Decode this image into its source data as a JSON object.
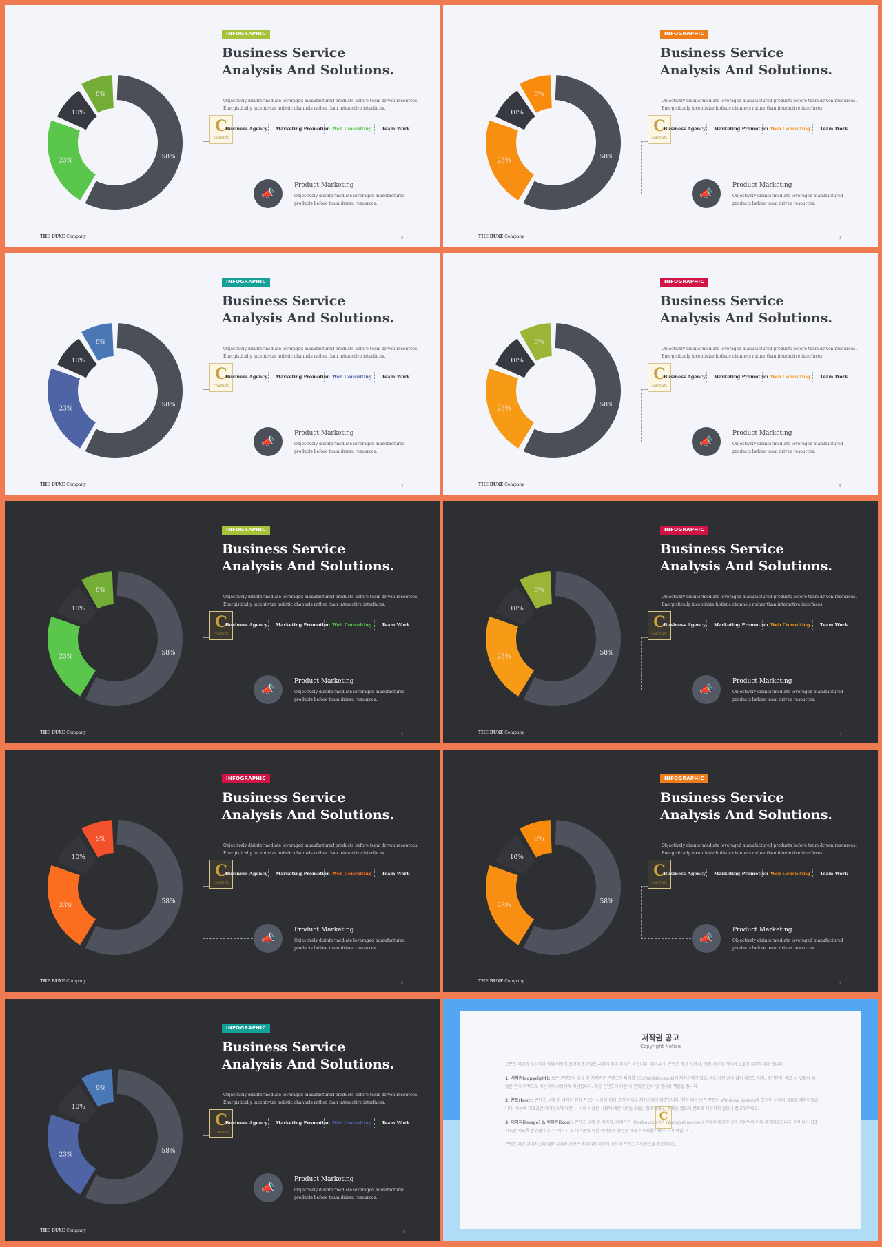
{
  "slide": {
    "tag": "INFOGRAPHIC",
    "title_line1": "Business Service",
    "title_line2": "Analysis And Solutions.",
    "desc_line1": "Objectively disintermediate leveraged manufactured products before team driven resources.",
    "desc_line2": "Energistically incentivize holistic channels rather than interactive interfaces.",
    "tabs": [
      "Business Agency",
      "Marketing Promotion",
      "Web Consulting",
      "Team Work"
    ],
    "pm_title": "Product Marketing",
    "pm_desc_line1": "Objectively disintermediate leveraged manufactured",
    "pm_desc_line2": "products before team driven resources.",
    "footer_brand": "THE BUXE",
    "footer_company": "Company",
    "logo_letter": "C",
    "logo_caption": "CONTENTS"
  },
  "chart_data": [
    {
      "type": "pie",
      "donut": true,
      "slide": 1,
      "theme": "light",
      "accent": "#a6c23a",
      "labels": [
        "58%",
        "23%",
        "10%",
        "9%"
      ],
      "values": [
        58,
        23,
        10,
        9
      ],
      "colors": [
        "#4b4f58",
        "#5ac64b",
        "#363940",
        "#74ad36"
      ],
      "page": "2"
    },
    {
      "type": "pie",
      "donut": true,
      "slide": 2,
      "theme": "light",
      "accent": "#f07c1a",
      "labels": [
        "58%",
        "23%",
        "10%",
        "9%"
      ],
      "values": [
        58,
        23,
        10,
        9
      ],
      "colors": [
        "#4b4f58",
        "#f88e12",
        "#363940",
        "#f98b0c"
      ],
      "page": "3"
    },
    {
      "type": "pie",
      "donut": true,
      "slide": 3,
      "theme": "light",
      "accent": "#13a19a",
      "labels": [
        "58%",
        "23%",
        "10%",
        "9%"
      ],
      "values": [
        58,
        23,
        10,
        9
      ],
      "colors": [
        "#4b4f58",
        "#4f64a4",
        "#363940",
        "#4a77b5"
      ],
      "page": "4"
    },
    {
      "type": "pie",
      "donut": true,
      "slide": 4,
      "theme": "light",
      "accent": "#d21346",
      "labels": [
        "58%",
        "23%",
        "10%",
        "9%"
      ],
      "values": [
        58,
        23,
        10,
        9
      ],
      "colors": [
        "#4b4f58",
        "#f79a16",
        "#363940",
        "#9bb536"
      ],
      "page": "5"
    },
    {
      "type": "pie",
      "donut": true,
      "slide": 5,
      "theme": "dark",
      "accent": "#a6c23a",
      "labels": [
        "58%",
        "23%",
        "10%",
        "9%"
      ],
      "values": [
        58,
        23,
        10,
        9
      ],
      "colors": [
        "#4d525c",
        "#5ac64b",
        "#34363c",
        "#74ad36"
      ],
      "page": "6"
    },
    {
      "type": "pie",
      "donut": true,
      "slide": 6,
      "theme": "dark",
      "accent": "#d21346",
      "labels": [
        "58%",
        "23%",
        "10%",
        "9%"
      ],
      "values": [
        58,
        23,
        10,
        9
      ],
      "colors": [
        "#4d525c",
        "#f79a16",
        "#34363c",
        "#9bb536"
      ],
      "page": "7"
    },
    {
      "type": "pie",
      "donut": true,
      "slide": 7,
      "theme": "dark",
      "accent": "#d21346",
      "labels": [
        "58%",
        "23%",
        "10%",
        "9%"
      ],
      "values": [
        58,
        23,
        10,
        9
      ],
      "colors": [
        "#4d525c",
        "#fb6e20",
        "#34363c",
        "#f2512b"
      ],
      "page": "8"
    },
    {
      "type": "pie",
      "donut": true,
      "slide": 8,
      "theme": "dark",
      "accent": "#f07c1a",
      "labels": [
        "58%",
        "23%",
        "10%",
        "9%"
      ],
      "values": [
        58,
        23,
        10,
        9
      ],
      "colors": [
        "#4d525c",
        "#f88e12",
        "#34363c",
        "#f98b0c"
      ],
      "page": "9"
    },
    {
      "type": "pie",
      "donut": true,
      "slide": 9,
      "theme": "dark",
      "accent": "#13a19a",
      "labels": [
        "58%",
        "23%",
        "10%",
        "9%"
      ],
      "values": [
        58,
        23,
        10,
        9
      ],
      "colors": [
        "#4d525c",
        "#4f64a4",
        "#34363c",
        "#4a77b5"
      ],
      "page": "10"
    }
  ],
  "notice": {
    "title": "저작권 공고",
    "subtitle": "Copyright Notice",
    "intro": "굿폰트 제공과 사용자가 함께 이용의 협약과 조항별로 사례에 따라 주시기 바랍니다. 위의사 이 콘텐츠 제공 사용시, 계정 사용자 계약서 보호에 유의하셔야 합니다.",
    "p1_head": "1. 서작권(copyright):",
    "p1": "보존 콘텐츠의 소유 및 저작권은 콘텐츠의 타이틀 (Contentstokeout)에 저작자에게 있습니다. 사전 승낙 없이 업로드 이외, 무단판매, 배포 시 일절에 유일한 권리 목적으로 이용하여 사용시에 이용됩니다. 제공 콘텐츠에 대한 사 판매된 민사 및 형사상 책임을 집니다.",
    "p2_head": "2. 폰트(font):",
    "p2": "콘텐츠 내에 된 서체는 현장 폰트는 사용에 대해 공간의 세부 저작자에게 확인합니다. 현장 외의 보존 폰트는 Windows System에 포함된 서체와 공유로 제작되었습니다. 사용에 대표공간 라이선스에 대한 시 사항 사용은 사용에 대한 라이선스(를) 참조하세요. 폰트는 별도의 폰트로 제공되지 않으니 참고해주세요.",
    "p3_head": "3. 이미지(image) & 아이콘(icon):",
    "p3": "콘텐츠 내에 된 이미지, 아이콘은 (Pixabay.com)과 (Webdyeline.com) 등에서 제공된 것과 사용범위 이에 제작되었습니다. 이미지는 참조하시면 되도록 권위됩니다. 각 이미지 및 아이콘에 대한 라이선스 확인은 해당 사이트를 이용하시기 바랍니다.",
    "outro": "콘텐츠 제공 라이선스에 대한 자세한 사항은 홈페이지 하단에 사용된 콘텐츠 라이선스를 참조하세요."
  }
}
